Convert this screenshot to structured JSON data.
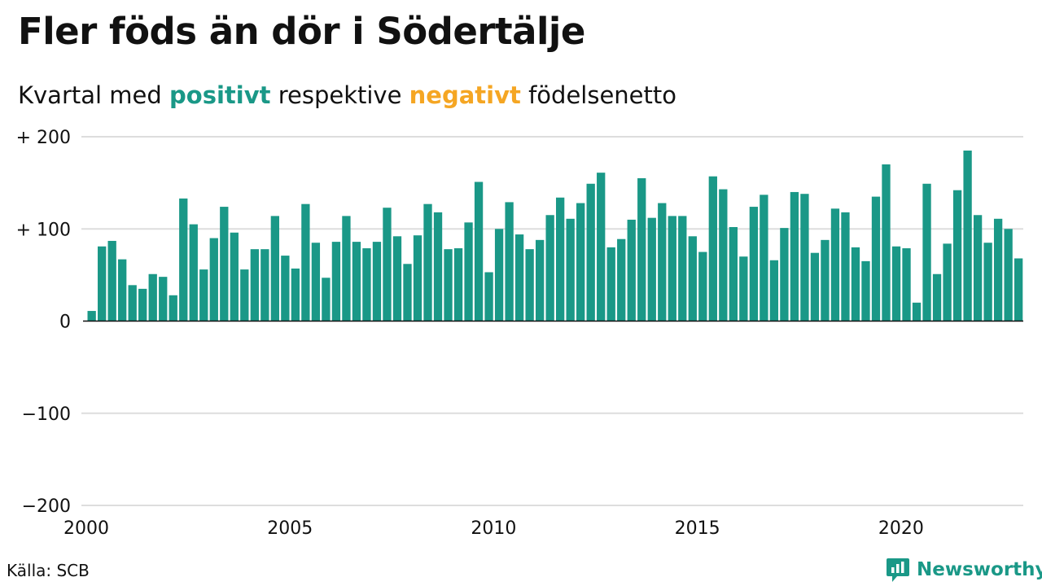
{
  "title": "Fler föds än dör i Södertälje",
  "subtitle": {
    "prefix": "Kvartal med",
    "positive": "positivt",
    "middle": "respektive",
    "negative": "negativt",
    "suffix": "födelsenetto"
  },
  "source": "Källa: SCB",
  "brand": "Newsworthy",
  "colors": {
    "positive": "#1a9887",
    "negative": "#f5a623",
    "grid": "#dddddd",
    "axis": "#111111"
  },
  "chart_data": {
    "type": "bar",
    "title": "Fler föds än dör i Södertälje",
    "subtitle": "Kvartal med positivt respektive negativt födelsenetto",
    "xlabel": "",
    "ylabel": "",
    "x_start": "2000 Q1",
    "x_ticks": [
      "2000",
      "2005",
      "2010",
      "2015",
      "2020"
    ],
    "y_ticks": [
      200,
      100,
      0,
      -100,
      -200
    ],
    "y_tick_labels": [
      "+ 200",
      "+ 100",
      "0",
      "−100",
      "−200"
    ],
    "ylim": [
      -200,
      200
    ],
    "grid": true,
    "values": [
      11,
      81,
      87,
      67,
      39,
      35,
      51,
      48,
      28,
      133,
      105,
      56,
      90,
      124,
      96,
      56,
      78,
      78,
      114,
      71,
      57,
      127,
      85,
      47,
      86,
      114,
      86,
      79,
      86,
      123,
      92,
      62,
      93,
      127,
      118,
      78,
      79,
      107,
      151,
      53,
      100,
      129,
      94,
      78,
      88,
      115,
      134,
      111,
      128,
      149,
      161,
      80,
      89,
      110,
      155,
      112,
      128,
      114,
      114,
      92,
      75,
      157,
      143,
      102,
      70,
      124,
      137,
      66,
      101,
      140,
      138,
      74,
      88,
      122,
      118,
      80,
      65,
      135,
      170,
      81,
      79,
      20,
      149,
      51,
      84,
      142,
      185,
      115,
      85,
      111,
      100,
      68
    ]
  }
}
